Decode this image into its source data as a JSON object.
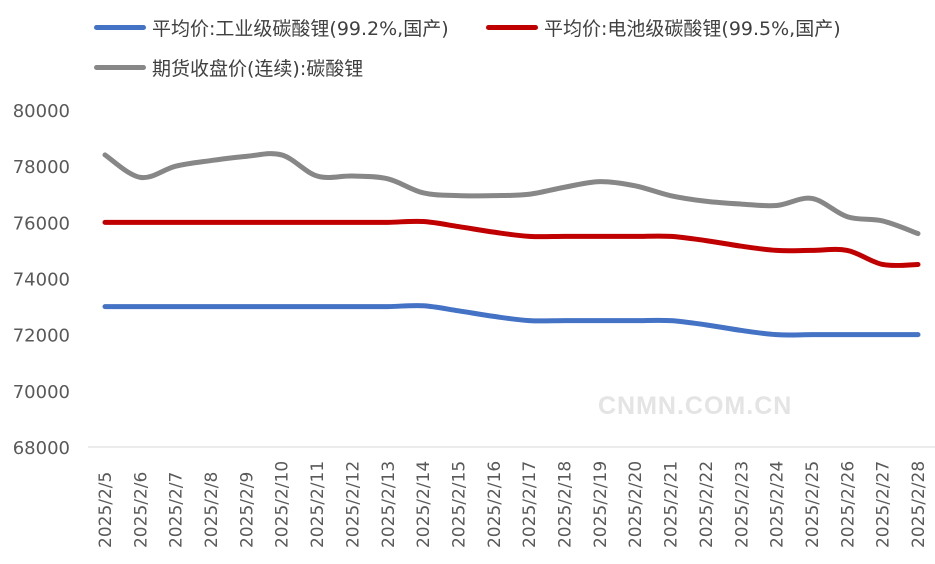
{
  "chart_data": {
    "type": "line",
    "categories": [
      "2025/2/5",
      "2025/2/6",
      "2025/2/7",
      "2025/2/8",
      "2025/2/9",
      "2025/2/10",
      "2025/2/11",
      "2025/2/12",
      "2025/2/13",
      "2025/2/14",
      "2025/2/15",
      "2025/2/16",
      "2025/2/17",
      "2025/2/18",
      "2025/2/19",
      "2025/2/20",
      "2025/2/21",
      "2025/2/22",
      "2025/2/23",
      "2025/2/24",
      "2025/2/25",
      "2025/2/26",
      "2025/2/27",
      "2025/2/28"
    ],
    "ylim": [
      68000,
      80000
    ],
    "yticks": [
      68000,
      70000,
      72000,
      74000,
      76000,
      78000,
      80000
    ],
    "grid": false,
    "legend": "top",
    "series": [
      {
        "name": "平均价:工业级碳酸锂(99.2%,国产)",
        "color": "#4472C4",
        "values": [
          73000,
          73000,
          73000,
          73000,
          73000,
          73000,
          73000,
          73000,
          73000,
          73030,
          72850,
          72650,
          72500,
          72500,
          72500,
          72500,
          72500,
          72350,
          72150,
          72000,
          72000,
          72000,
          72000,
          72000
        ]
      },
      {
        "name": "平均价:电池级碳酸锂(99.5%,国产)",
        "color": "#C00000",
        "values": [
          76000,
          76000,
          76000,
          76000,
          76000,
          76000,
          76000,
          76000,
          76000,
          76030,
          75850,
          75650,
          75500,
          75500,
          75500,
          75500,
          75500,
          75350,
          75150,
          75000,
          75000,
          75000,
          74500,
          74500
        ]
      },
      {
        "name": "期货收盘价(连续):碳酸锂",
        "color": "#878787",
        "values": [
          78400,
          77600,
          78000,
          78200,
          78350,
          78400,
          77650,
          77650,
          77550,
          77050,
          76950,
          76950,
          77000,
          77250,
          77450,
          77300,
          76950,
          76750,
          76650,
          76600,
          76850,
          76200,
          76050,
          75600
        ]
      }
    ]
  },
  "watermark": "CNMN.COM.CN"
}
